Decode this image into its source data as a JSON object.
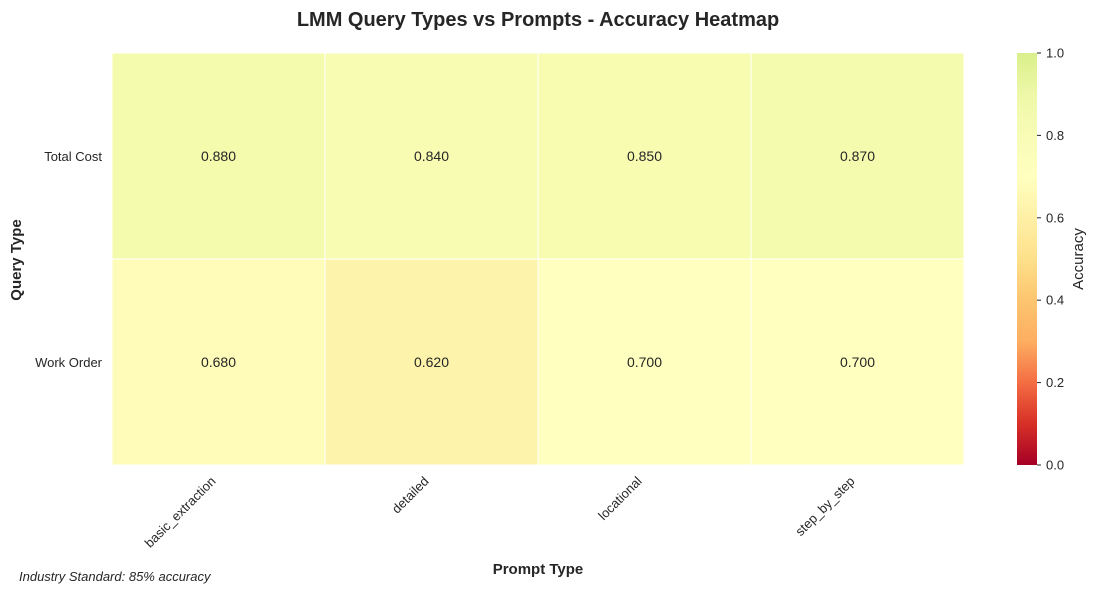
{
  "chart_data": {
    "type": "heatmap",
    "title": "LMM Query Types vs Prompts - Accuracy Heatmap",
    "xlabel": "Prompt Type",
    "ylabel": "Query Type",
    "x_categories": [
      "basic_extraction",
      "detailed",
      "locational",
      "step_by_step"
    ],
    "y_categories": [
      "Total Cost",
      "Work Order"
    ],
    "values": [
      [
        0.88,
        0.84,
        0.85,
        0.87
      ],
      [
        0.68,
        0.62,
        0.7,
        0.7
      ]
    ],
    "cell_labels": [
      [
        "0.880",
        "0.840",
        "0.850",
        "0.870"
      ],
      [
        "0.680",
        "0.620",
        "0.700",
        "0.700"
      ]
    ],
    "colormap": "RdYlGn",
    "colorbar": {
      "label": "Accuracy",
      "range": [
        0.0,
        1.0
      ],
      "ticks": [
        "0.0",
        "0.2",
        "0.4",
        "0.6",
        "0.8",
        "1.0"
      ]
    },
    "annotation": "Industry Standard: 85% accuracy",
    "grid": false
  }
}
